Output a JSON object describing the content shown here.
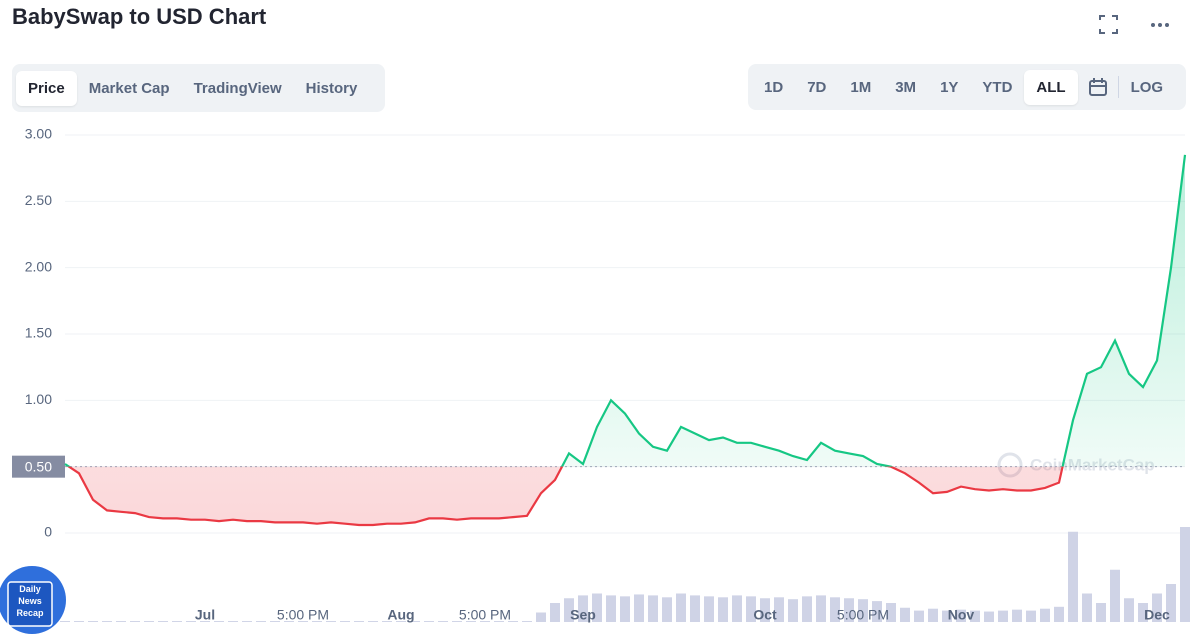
{
  "header": {
    "title": "BabySwap to USD Chart"
  },
  "tabs": [
    {
      "label": "Price",
      "selected": true
    },
    {
      "label": "Market Cap",
      "selected": false
    },
    {
      "label": "TradingView",
      "selected": false
    },
    {
      "label": "History",
      "selected": false
    }
  ],
  "ranges": [
    {
      "label": "1D",
      "selected": false
    },
    {
      "label": "7D",
      "selected": false
    },
    {
      "label": "1M",
      "selected": false
    },
    {
      "label": "3M",
      "selected": false
    },
    {
      "label": "1Y",
      "selected": false
    },
    {
      "label": "YTD",
      "selected": false
    },
    {
      "label": "ALL",
      "selected": true
    }
  ],
  "scale_button": "LOG",
  "badge_lines": [
    "Daily",
    "News",
    "Recap"
  ],
  "chart_data": {
    "type": "line",
    "categories": [
      null,
      null,
      null,
      null,
      null,
      null,
      null,
      null,
      null,
      null,
      "Jul",
      null,
      null,
      null,
      null,
      null,
      null,
      "5:00 PM",
      null,
      null,
      null,
      null,
      null,
      null,
      "Aug",
      null,
      null,
      null,
      null,
      null,
      "5:00 PM",
      null,
      null,
      null,
      null,
      null,
      null,
      "Sep",
      null,
      null,
      null,
      null,
      null,
      null,
      null,
      null,
      null,
      null,
      null,
      null,
      "Oct",
      null,
      null,
      null,
      null,
      null,
      null,
      "5:00 PM",
      null,
      null,
      null,
      null,
      null,
      null,
      "Nov",
      null,
      null,
      null,
      null,
      null,
      null,
      null,
      null,
      null,
      null,
      null,
      null,
      null,
      "Dec",
      null,
      null
    ],
    "values": [
      0.52,
      0.45,
      0.25,
      0.17,
      0.16,
      0.15,
      0.12,
      0.11,
      0.11,
      0.1,
      0.1,
      0.09,
      0.1,
      0.09,
      0.09,
      0.08,
      0.08,
      0.08,
      0.07,
      0.08,
      0.07,
      0.06,
      0.06,
      0.07,
      0.07,
      0.08,
      0.11,
      0.11,
      0.1,
      0.11,
      0.11,
      0.11,
      0.12,
      0.13,
      0.3,
      0.4,
      0.6,
      0.52,
      0.8,
      1.0,
      0.9,
      0.75,
      0.65,
      0.62,
      0.8,
      0.75,
      0.7,
      0.72,
      0.68,
      0.68,
      0.65,
      0.62,
      0.58,
      0.55,
      0.68,
      0.62,
      0.6,
      0.58,
      0.52,
      0.5,
      0.45,
      0.38,
      0.3,
      0.31,
      0.35,
      0.33,
      0.32,
      0.33,
      0.32,
      0.32,
      0.34,
      0.38,
      0.85,
      1.2,
      1.25,
      1.45,
      1.2,
      1.1,
      1.3,
      2.0,
      2.85
    ],
    "volume": [
      1,
      1,
      1,
      1,
      1,
      1,
      1,
      1,
      1,
      1,
      1,
      1,
      1,
      1,
      1,
      1,
      1,
      1,
      1,
      1,
      1,
      1,
      1,
      1,
      1,
      1,
      1,
      1,
      1,
      1,
      1,
      1,
      1,
      1,
      10,
      20,
      25,
      28,
      30,
      28,
      27,
      29,
      28,
      26,
      30,
      28,
      27,
      26,
      28,
      27,
      25,
      26,
      24,
      27,
      28,
      26,
      25,
      24,
      22,
      20,
      15,
      12,
      14,
      12,
      13,
      12,
      11,
      12,
      13,
      12,
      14,
      16,
      95,
      30,
      20,
      55,
      25,
      20,
      30,
      40,
      100
    ],
    "ylim": [
      0,
      3
    ],
    "yticks": [
      0,
      {
        "value": 0.5,
        "label": "0.50"
      },
      {
        "value": 1,
        "label": "1.00"
      },
      {
        "value": 1.5,
        "label": "1.50"
      },
      {
        "value": 2,
        "label": "2.00"
      },
      {
        "value": 2.5,
        "label": "2.50"
      },
      {
        "value": 3,
        "label": "3.00"
      }
    ],
    "baseline": 0.5,
    "up_color": "#16c784",
    "down_color": "#ea3943",
    "volume_color": "#cfd3e6",
    "grid": true,
    "watermark": "CoinMarketCap"
  }
}
